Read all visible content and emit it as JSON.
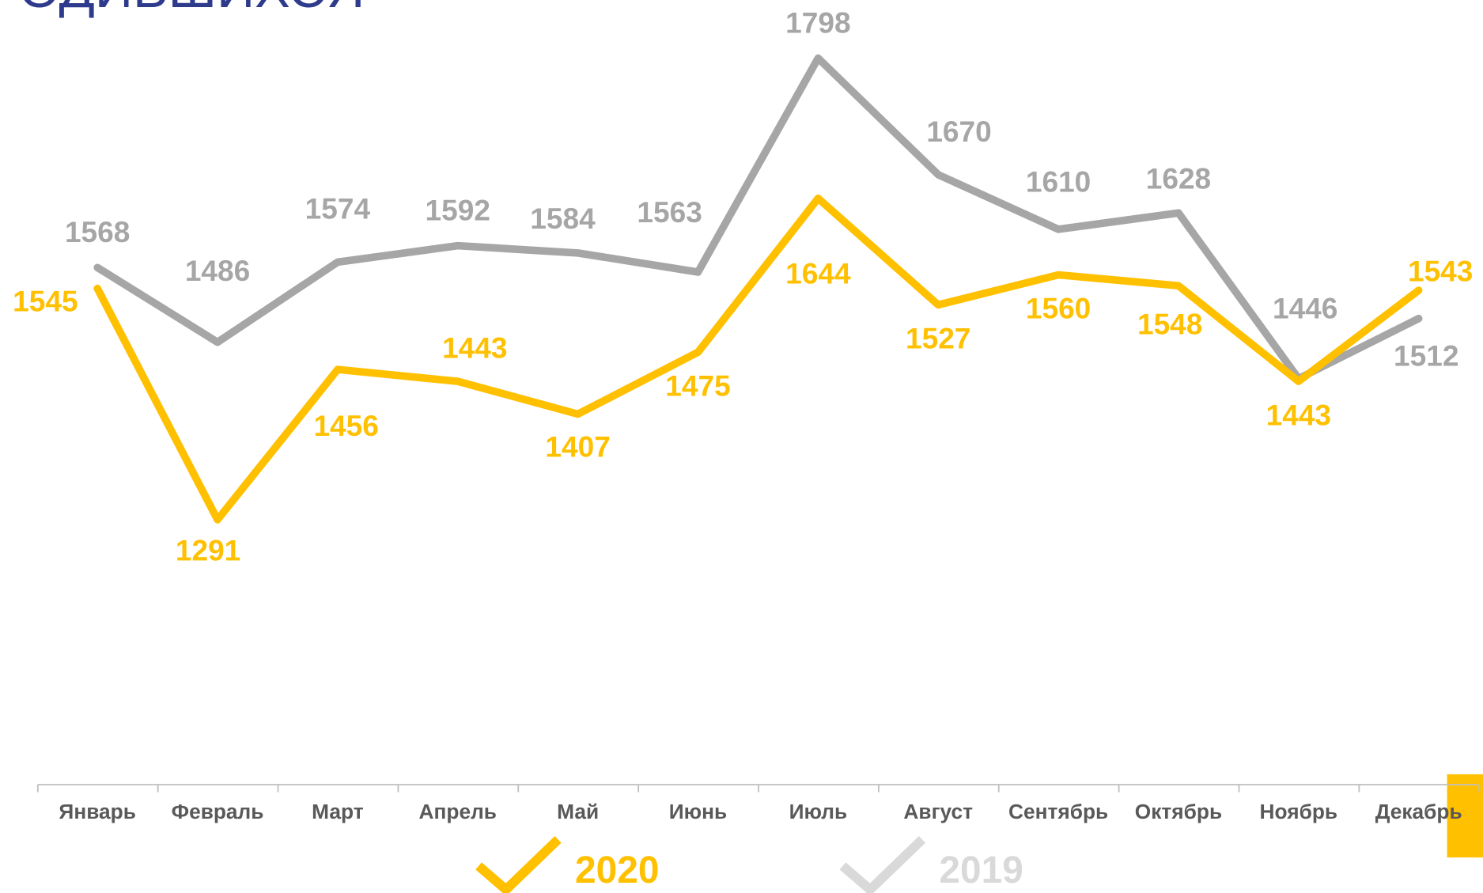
{
  "chart_data": {
    "type": "line",
    "title": "ОДИВШИХСЯ",
    "categories": [
      "Январь",
      "Февраль",
      "Март",
      "Апрель",
      "Май",
      "Июнь",
      "Июль",
      "Август",
      "Сентябрь",
      "Октябрь",
      "Ноябрь",
      "Декабрь"
    ],
    "series": [
      {
        "name": "2020",
        "color": "#FFC000",
        "values": [
          1545,
          1291,
          1456,
          1443,
          1407,
          1475,
          1644,
          1527,
          1560,
          1548,
          1443,
          1543
        ]
      },
      {
        "name": "2019",
        "color": "#A6A6A6",
        "legend_color": "#D9D9D9",
        "values": [
          1568,
          1486,
          1574,
          1592,
          1584,
          1563,
          1798,
          1670,
          1610,
          1628,
          1446,
          1512
        ]
      }
    ],
    "ylim": [
      1000,
      1900
    ]
  }
}
